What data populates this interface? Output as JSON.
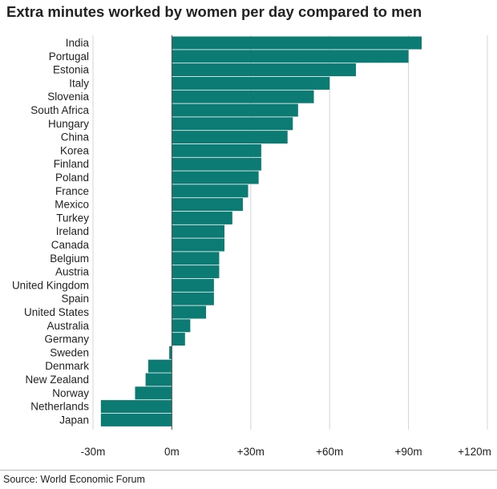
{
  "title": "Extra minutes worked by women per day compared to men",
  "source": "Source: World Economic Forum",
  "chart_data": {
    "type": "bar",
    "orientation": "horizontal",
    "title": "Extra minutes worked by women per day compared to men",
    "xlabel": "",
    "ylabel": "",
    "xlim": [
      -30,
      120
    ],
    "x_ticks": [
      -30,
      0,
      30,
      60,
      90,
      120
    ],
    "x_tick_labels": [
      "-30m",
      "0m",
      "+30m",
      "+60m",
      "+90m",
      "+120m"
    ],
    "grid": true,
    "bar_color": "#0b7b73",
    "categories": [
      "India",
      "Portugal",
      "Estonia",
      "Italy",
      "Slovenia",
      "South Africa",
      "Hungary",
      "China",
      "Korea",
      "Finland",
      "Poland",
      "France",
      "Mexico",
      "Turkey",
      "Ireland",
      "Canada",
      "Belgium",
      "Austria",
      "United Kingdom",
      "Spain",
      "United States",
      "Australia",
      "Germany",
      "Sweden",
      "Denmark",
      "New Zealand",
      "Norway",
      "Netherlands",
      "Japan"
    ],
    "values": [
      95,
      90,
      70,
      60,
      54,
      48,
      46,
      44,
      34,
      34,
      33,
      29,
      27,
      23,
      20,
      20,
      18,
      18,
      16,
      16,
      13,
      7,
      5,
      -1,
      -9,
      -10,
      -14,
      -27,
      -27
    ]
  }
}
